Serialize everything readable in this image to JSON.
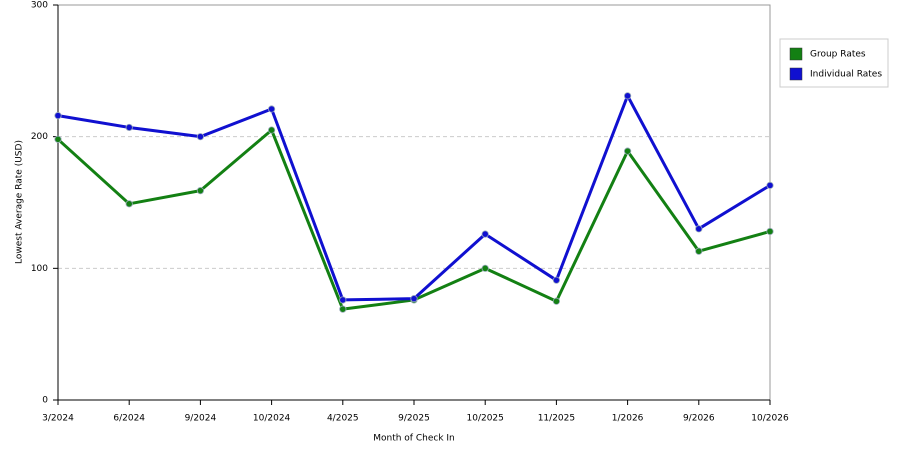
{
  "chart_data": {
    "type": "line",
    "x_label": "Month of Check In",
    "y_label": "Lowest Average Rate (USD)",
    "categories": [
      "3/2024",
      "6/2024",
      "9/2024",
      "10/2024",
      "4/2025",
      "9/2025",
      "10/2025",
      "11/2025",
      "1/2026",
      "9/2026",
      "10/2026"
    ],
    "series": [
      {
        "name": "Group Rates",
        "color": "#138013",
        "values": [
          198,
          149,
          159,
          205,
          69,
          76,
          100,
          75,
          189,
          113,
          128
        ]
      },
      {
        "name": "Individual Rates",
        "color": "#1010d0",
        "values": [
          216,
          207,
          200,
          221,
          76,
          77,
          126,
          91,
          231,
          130,
          163
        ]
      }
    ],
    "ylim": [
      0,
      300
    ],
    "yticks": [
      0,
      100,
      200,
      300
    ],
    "grid": true,
    "legend": "right"
  }
}
